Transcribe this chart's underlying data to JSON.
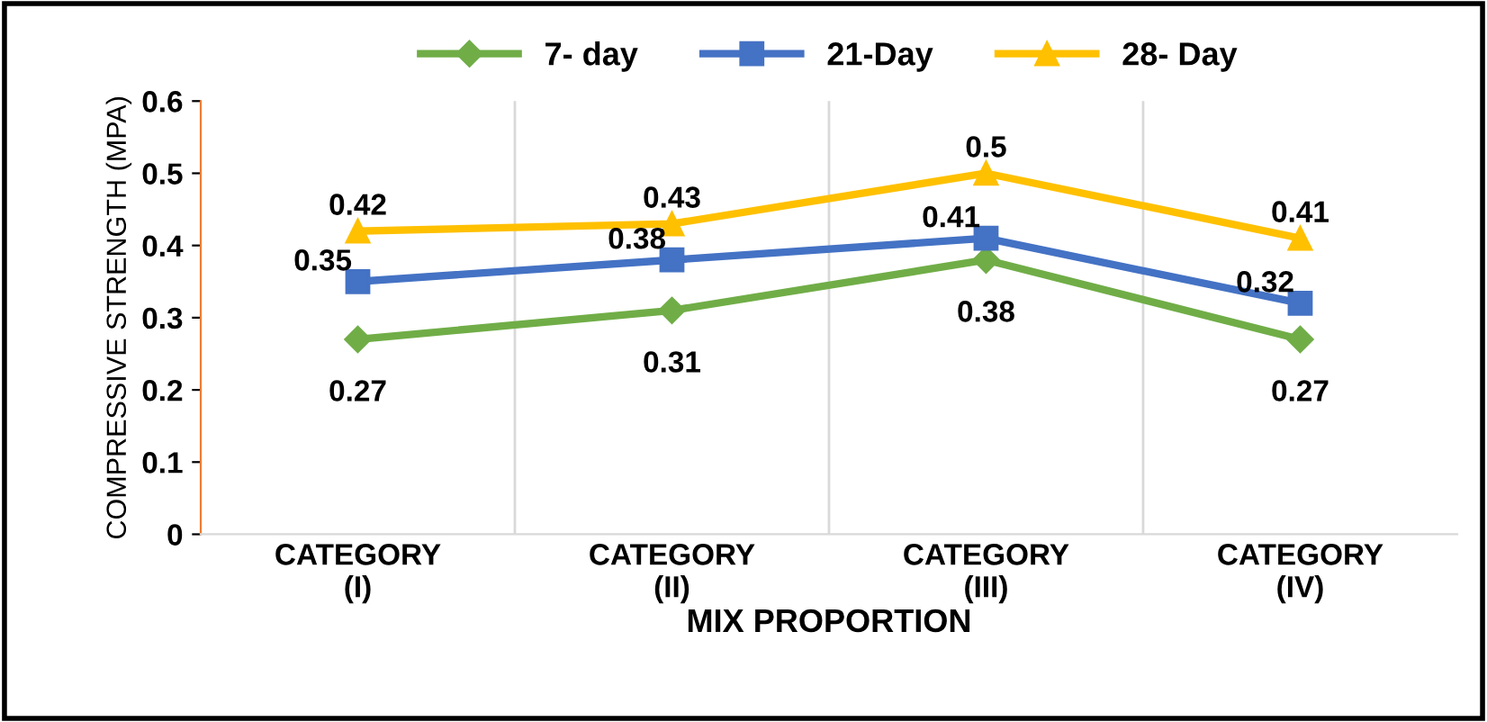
{
  "chart_data": {
    "type": "line",
    "xlabel": "MIX PROPORTION",
    "ylabel": "COMPRESSIVE STRENGTH (MPA)",
    "categories": [
      "CATEGORY (I)",
      "CATEGORY (II)",
      "CATEGORY (III)",
      "CATEGORY (IV)"
    ],
    "series": [
      {
        "name": "7- day",
        "color": "#70ad47",
        "marker": "diamond",
        "values": [
          0.27,
          0.31,
          0.38,
          0.27
        ]
      },
      {
        "name": "21-Day",
        "color": "#4472c4",
        "marker": "square",
        "values": [
          0.35,
          0.38,
          0.41,
          0.32
        ]
      },
      {
        "name": "28- Day",
        "color": "#ffc000",
        "marker": "triangle",
        "values": [
          0.42,
          0.43,
          0.5,
          0.41
        ]
      }
    ],
    "ylim": [
      0,
      0.6
    ],
    "yticks": [
      {
        "value": 0,
        "label": "0"
      },
      0.1,
      0.2,
      0.3,
      0.4,
      0.5,
      0.6
    ],
    "grid": "x",
    "legend": "top",
    "data_labels": true
  }
}
